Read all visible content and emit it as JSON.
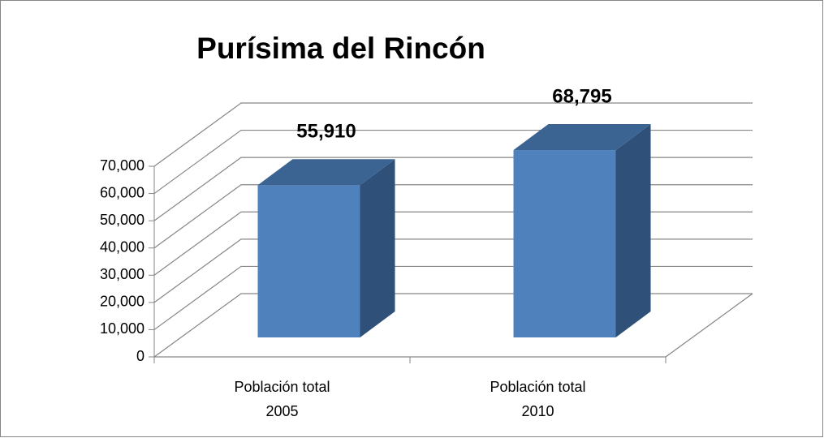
{
  "chart_data": {
    "type": "bar3d",
    "title": "Purísima del Rincón",
    "categories": [
      "Población total 2005",
      "Población total 2010"
    ],
    "values": [
      55910,
      68795
    ],
    "value_labels": [
      "55,910",
      "68,795"
    ],
    "color": "#4f81bd",
    "ylim": [
      0,
      70000
    ],
    "yticks": [
      0,
      {
        "value": 10000,
        "label": "10,000"
      },
      {
        "value": 20000,
        "label": "20,000"
      },
      {
        "value": 30000,
        "label": "30,000"
      },
      {
        "value": 40000,
        "label": "40,000"
      },
      {
        "value": 50000,
        "label": "50,000"
      },
      {
        "value": 60000,
        "label": "60,000"
      },
      {
        "value": 70000,
        "label": "70,000"
      }
    ],
    "grid": true
  }
}
